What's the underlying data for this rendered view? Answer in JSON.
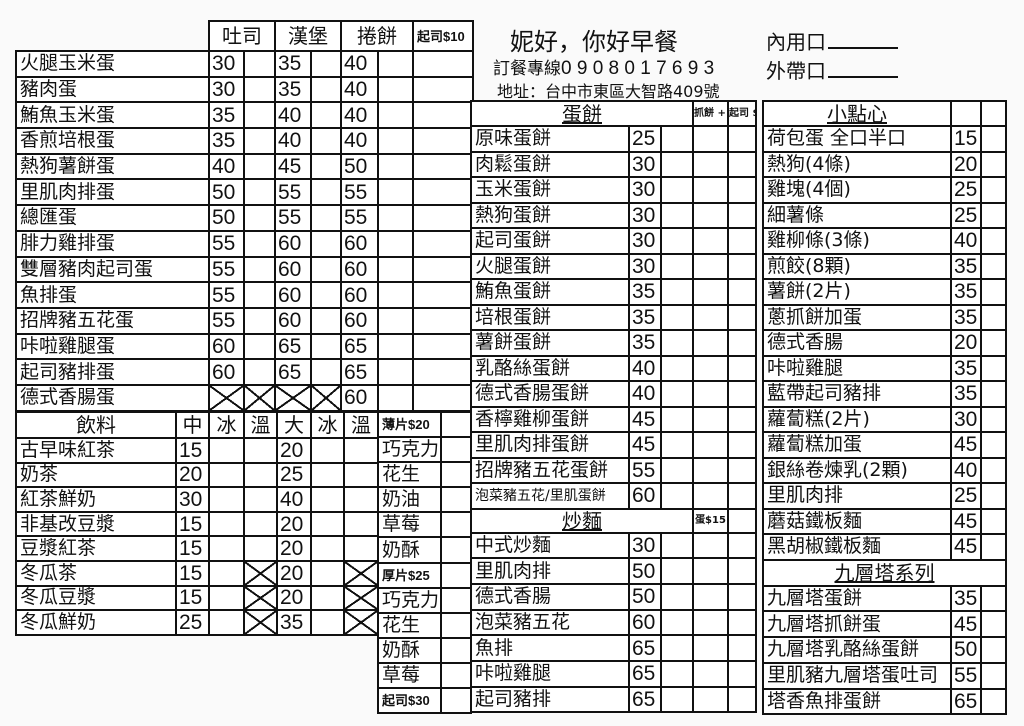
{
  "header": {
    "shop_name": "妮好，你好早餐",
    "phone_label": "訂餐專線",
    "phone": "0 9 0 8 0 1 7 6 9 3",
    "address": "地址：台中市東區大智路409號",
    "dine_in": "內用口",
    "take_out": "外帶口"
  },
  "main": {
    "columns": [
      "吐司",
      "漢堡",
      "捲餅",
      "起司$10"
    ],
    "rows": [
      {
        "name": "火腿玉米蛋",
        "prices": [
          30,
          35,
          40
        ]
      },
      {
        "name": "豬肉蛋",
        "prices": [
          30,
          35,
          40
        ]
      },
      {
        "name": "鮪魚玉米蛋",
        "prices": [
          35,
          40,
          40
        ]
      },
      {
        "name": "香煎培根蛋",
        "prices": [
          35,
          40,
          40
        ]
      },
      {
        "name": "熱狗薯餅蛋",
        "prices": [
          40,
          45,
          50
        ]
      },
      {
        "name": "里肌肉排蛋",
        "prices": [
          50,
          55,
          55
        ]
      },
      {
        "name": "總匯蛋",
        "prices": [
          50,
          55,
          55
        ]
      },
      {
        "name": "腓力雞排蛋",
        "prices": [
          55,
          60,
          60
        ]
      },
      {
        "name": "雙層豬肉起司蛋",
        "prices": [
          55,
          60,
          60
        ]
      },
      {
        "name": "魚排蛋",
        "prices": [
          55,
          60,
          60
        ]
      },
      {
        "name": "招牌豬五花蛋",
        "prices": [
          55,
          60,
          60
        ]
      },
      {
        "name": "咔啦雞腿蛋",
        "prices": [
          60,
          65,
          65
        ]
      },
      {
        "name": "起司豬排蛋",
        "prices": [
          60,
          65,
          65
        ]
      },
      {
        "name": "德式香腸蛋",
        "prices": [
          null,
          null,
          60
        ]
      }
    ]
  },
  "drinks": {
    "title": "飲料",
    "columns": [
      "中",
      "冰",
      "溫",
      "大",
      "冰",
      "溫"
    ],
    "rows": [
      {
        "name": "古早味紅茶",
        "medium": 15,
        "large": 20,
        "hot": true
      },
      {
        "name": "奶茶",
        "medium": 20,
        "large": 25,
        "hot": true
      },
      {
        "name": "紅茶鮮奶",
        "medium": 30,
        "large": 40,
        "hot": true
      },
      {
        "name": "非基改豆漿",
        "medium": 15,
        "large": 20,
        "hot": true
      },
      {
        "name": "豆漿紅茶",
        "medium": 15,
        "large": 20,
        "hot": true
      },
      {
        "name": "冬瓜茶",
        "medium": 15,
        "large": 20,
        "hot": false
      },
      {
        "name": "冬瓜豆漿",
        "medium": 15,
        "large": 20,
        "hot": false
      },
      {
        "name": "冬瓜鮮奶",
        "medium": 25,
        "large": 35,
        "hot": false
      }
    ]
  },
  "toast_spreads": {
    "rows": [
      {
        "label": "薄片$20",
        "header": true
      },
      {
        "label": "巧克力"
      },
      {
        "label": "花生"
      },
      {
        "label": "奶油"
      },
      {
        "label": "草莓"
      },
      {
        "label": "奶酥"
      },
      {
        "label": "厚片$25",
        "header": true
      },
      {
        "label": "巧克力"
      },
      {
        "label": "花生"
      },
      {
        "label": "奶酥"
      },
      {
        "label": "草莓"
      },
      {
        "label": "起司$30",
        "header": true
      }
    ]
  },
  "egg_pancake": {
    "title": "蛋餅",
    "addon1": "抓餅 +10",
    "addon2": "起司 $10",
    "rows": [
      {
        "name": "原味蛋餅",
        "price": 25
      },
      {
        "name": "肉鬆蛋餅",
        "price": 30
      },
      {
        "name": "玉米蛋餅",
        "price": 30
      },
      {
        "name": "熱狗蛋餅",
        "price": 30
      },
      {
        "name": "起司蛋餅",
        "price": 30
      },
      {
        "name": "火腿蛋餅",
        "price": 30
      },
      {
        "name": "鮪魚蛋餅",
        "price": 35
      },
      {
        "name": "培根蛋餅",
        "price": 35
      },
      {
        "name": "薯餅蛋餅",
        "price": 35
      },
      {
        "name": "乳酪絲蛋餅",
        "price": 40
      },
      {
        "name": "德式香腸蛋餅",
        "price": 40
      },
      {
        "name": "香檸雞柳蛋餅",
        "price": 45
      },
      {
        "name": "里肌肉排蛋餅",
        "price": 45
      },
      {
        "name": "招牌豬五花蛋餅",
        "price": 55
      },
      {
        "name": "泡菜豬五花/里肌蛋餅",
        "price": 60
      }
    ]
  },
  "fried_noodles": {
    "title": "炒麵",
    "addon": "蛋$15",
    "rows": [
      {
        "name": "中式炒麵",
        "price": 30
      },
      {
        "name": "里肌肉排",
        "price": 50
      },
      {
        "name": "德式香腸",
        "price": 50
      },
      {
        "name": "泡菜豬五花",
        "price": 60
      },
      {
        "name": "魚排",
        "price": 65
      },
      {
        "name": "咔啦雞腿",
        "price": 65
      },
      {
        "name": "起司豬排",
        "price": 65
      }
    ]
  },
  "snacks": {
    "title": "小點心",
    "rows": [
      {
        "name": "荷包蛋 全口半口",
        "price": 15
      },
      {
        "name": "熱狗(4條)",
        "price": 20
      },
      {
        "name": "雞塊(4個)",
        "price": 25
      },
      {
        "name": "細薯條",
        "price": 25
      },
      {
        "name": "雞柳條(3條)",
        "price": 40
      },
      {
        "name": "煎餃(8顆)",
        "price": 35
      },
      {
        "name": "薯餅(2片)",
        "price": 35
      },
      {
        "name": "蔥抓餅加蛋",
        "price": 35
      },
      {
        "name": "德式香腸",
        "price": 20
      },
      {
        "name": "咔啦雞腿",
        "price": 35
      },
      {
        "name": "藍帶起司豬排",
        "price": 35
      },
      {
        "name": "蘿蔔糕(2片)",
        "price": 30
      },
      {
        "name": "蘿蔔糕加蛋",
        "price": 45
      },
      {
        "name": "銀絲卷煉乳(2顆)",
        "price": 40
      },
      {
        "name": "里肌肉排",
        "price": 25
      },
      {
        "name": "蘑菇鐵板麵",
        "price": 45
      },
      {
        "name": "黑胡椒鐵板麵",
        "price": 45
      }
    ]
  },
  "basil_series": {
    "title": "九層塔系列",
    "rows": [
      {
        "name": "九層塔蛋餅",
        "price": 35
      },
      {
        "name": "九層塔抓餅蛋",
        "price": 45
      },
      {
        "name": "九層塔乳酪絲蛋餅",
        "price": 50
      },
      {
        "name": "里肌豬九層塔蛋吐司",
        "price": 55
      },
      {
        "name": "塔香魚排蛋餅",
        "price": 65
      }
    ]
  }
}
